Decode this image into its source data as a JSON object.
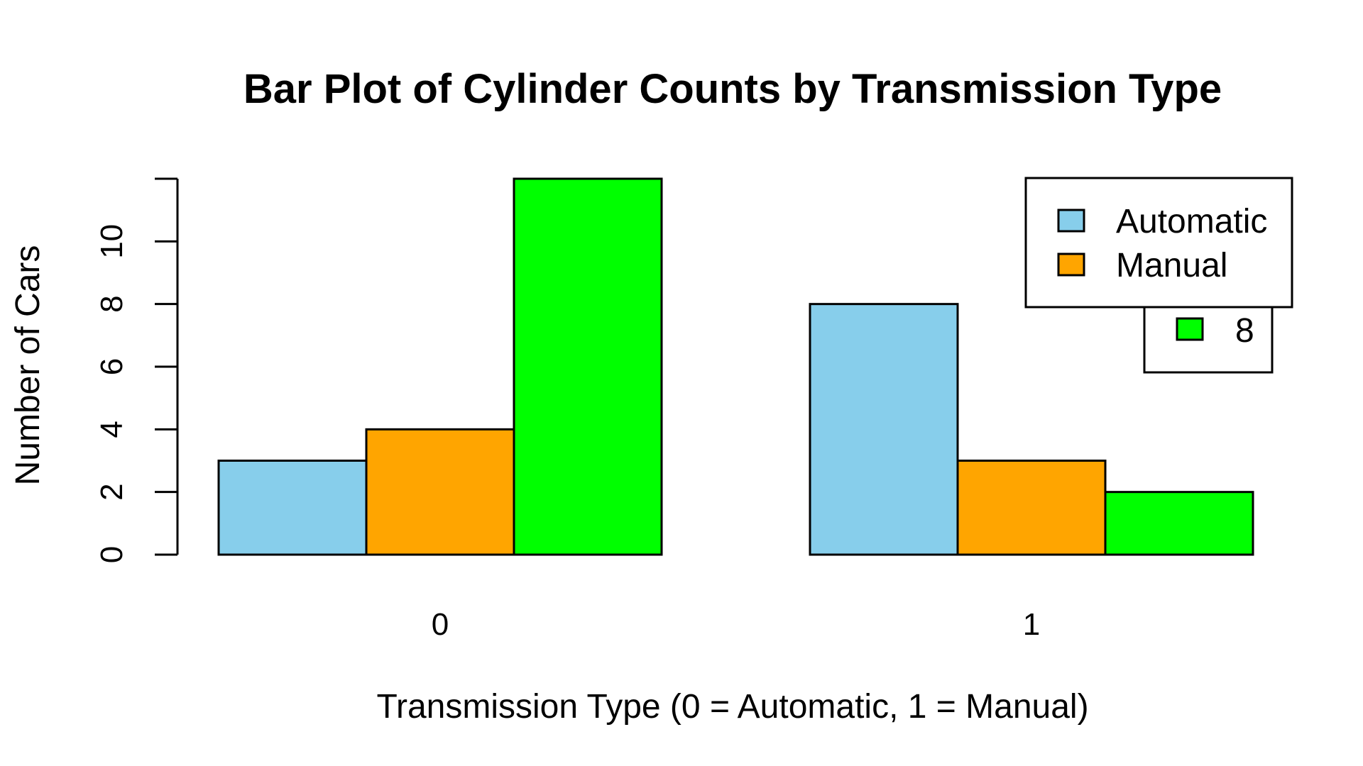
{
  "chart_data": {
    "type": "bar",
    "title": "Bar Plot of Cylinder Counts by Transmission Type",
    "xlabel": "Transmission Type (0 = Automatic, 1 = Manual)",
    "ylabel": "Number of Cars",
    "categories": [
      "0",
      "1"
    ],
    "y_ticks": [
      "0",
      "2",
      "4",
      "6",
      "8",
      "10"
    ],
    "ylim": [
      0,
      12
    ],
    "grid": false,
    "series": [
      {
        "color": "#87CEEB",
        "values": [
          3,
          8
        ]
      },
      {
        "color": "#FFA500",
        "values": [
          4,
          3
        ]
      },
      {
        "color": "#00FF00",
        "values": [
          12,
          2
        ]
      }
    ],
    "legend_front": {
      "placement": "top-right",
      "entries": [
        {
          "label": "Automatic",
          "color": "#87CEEB"
        },
        {
          "label": "Manual",
          "color": "#FFA500"
        }
      ]
    },
    "legend_back": {
      "placement": "top-right",
      "entries": [
        {
          "label": "8",
          "color": "#00FF00"
        }
      ]
    }
  }
}
